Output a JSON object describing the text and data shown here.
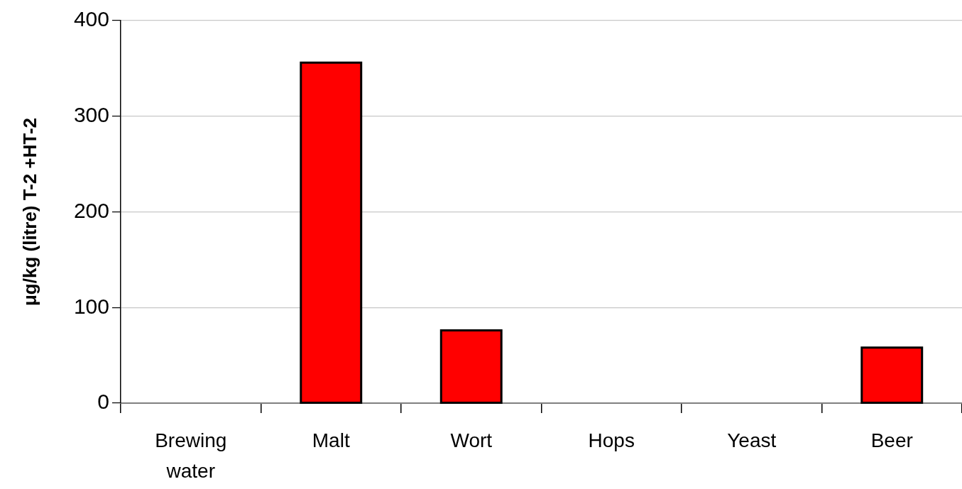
{
  "chart_data": {
    "type": "bar",
    "ylabel": "μg/kg (litre) T-2 +HT-2",
    "categories": [
      "Brewing water",
      "Malt",
      "Wort",
      "Hops",
      "Yeast",
      "Beer"
    ],
    "values": [
      0,
      356,
      76,
      0,
      0,
      58
    ],
    "color": "#ff0000",
    "ylim": [
      0,
      400
    ],
    "yticks": [
      0,
      100,
      200,
      300,
      400
    ],
    "grid": "y"
  }
}
